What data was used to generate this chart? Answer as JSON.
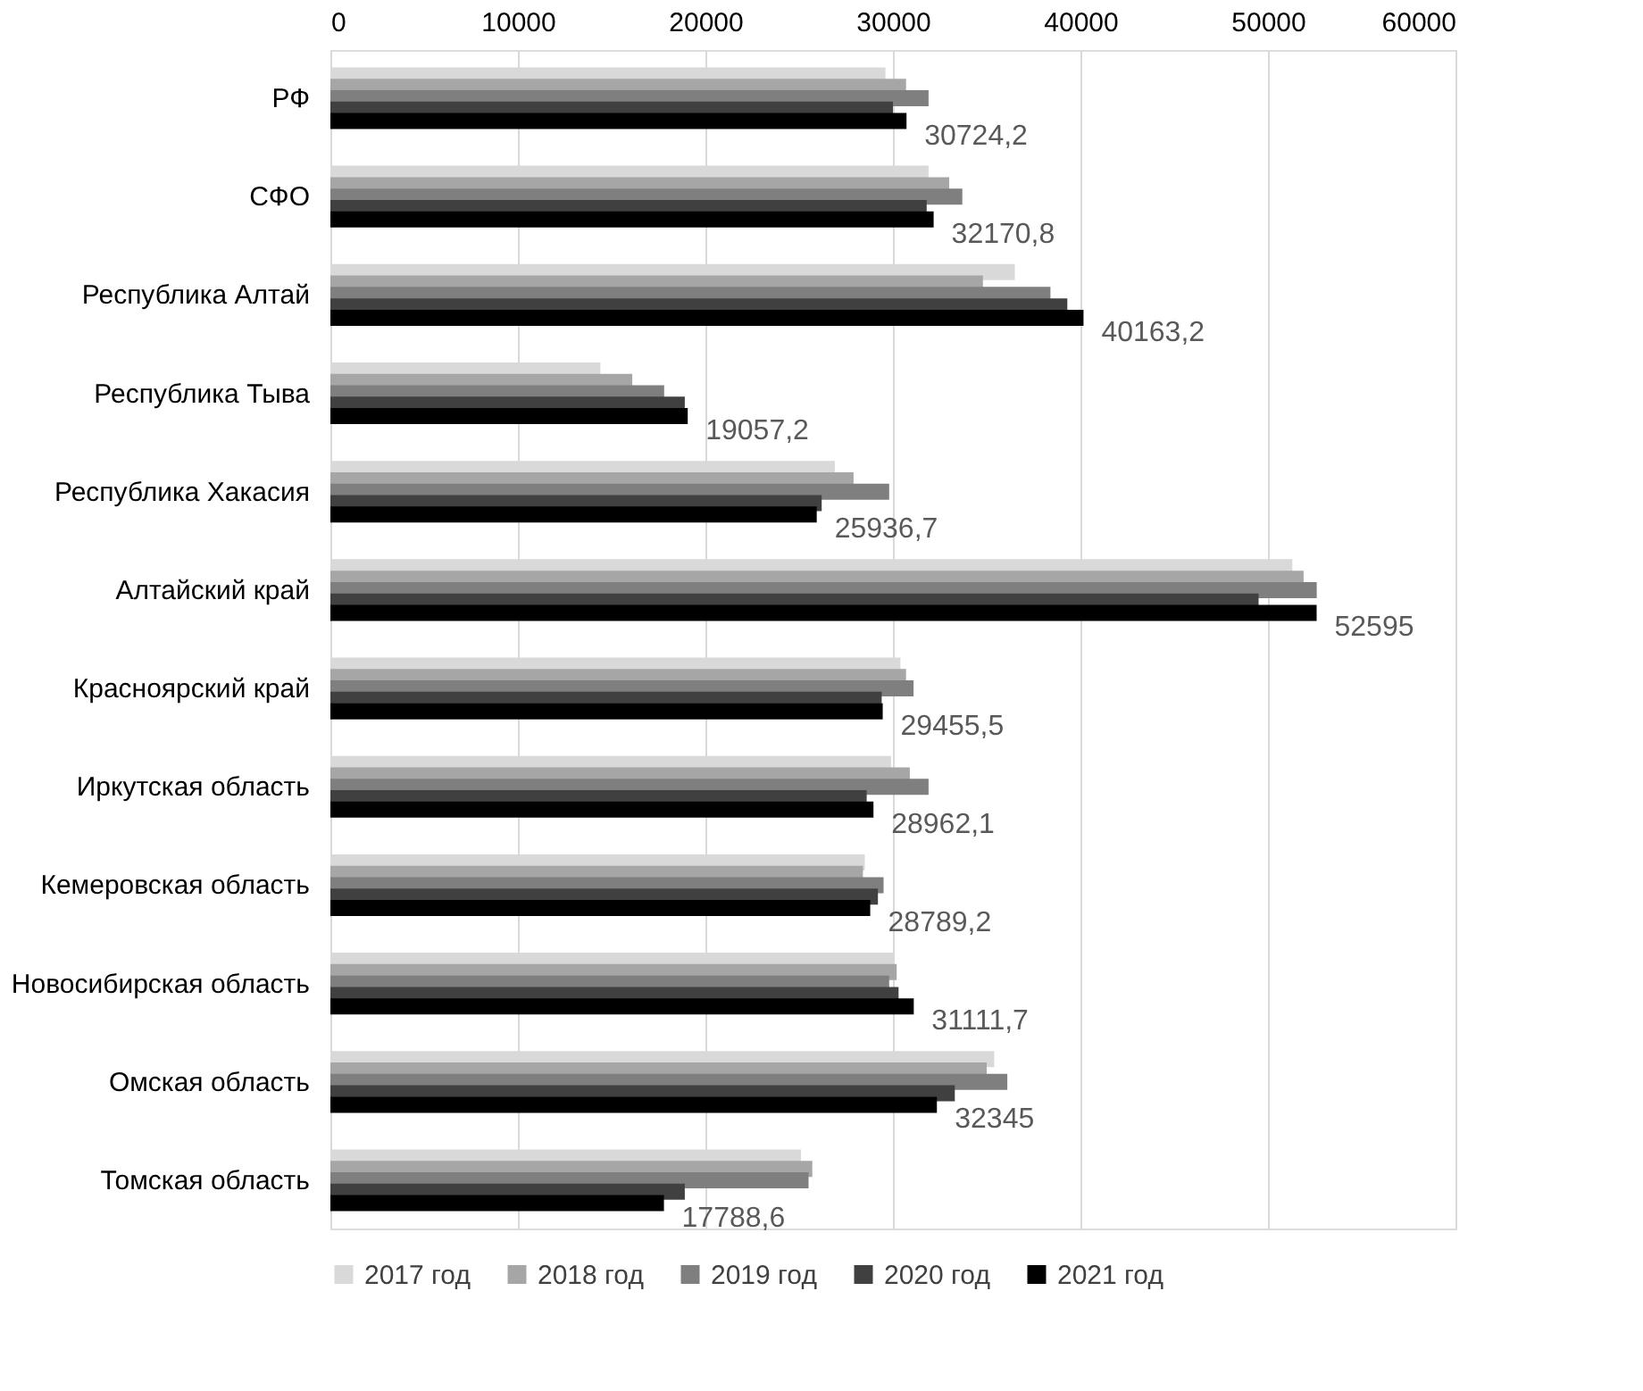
{
  "chart_data": {
    "type": "bar",
    "orientation": "horizontal",
    "categories": [
      "РФ",
      "СФО",
      "Республика Алтай",
      "Республика Тыва",
      "Республика Хакасия",
      "Алтайский край",
      "Красноярский край",
      "Иркутская область",
      "Кемеровская область",
      "Новосибирская область",
      "Омская область",
      "Томская область"
    ],
    "series": [
      {
        "name": "2017 год",
        "color": "#d9d9d9",
        "values": [
          29600,
          31900,
          36500,
          14400,
          26900,
          51300,
          30400,
          29900,
          28500,
          30000,
          35400,
          25100
        ]
      },
      {
        "name": "2018 год",
        "color": "#a6a6a6",
        "values": [
          30700,
          33000,
          34800,
          16100,
          27900,
          51900,
          30700,
          30900,
          28400,
          30200,
          35000,
          25700
        ]
      },
      {
        "name": "2019 год",
        "color": "#7f7f7f",
        "values": [
          31900,
          33700,
          38400,
          17800,
          29800,
          52600,
          31100,
          31900,
          29500,
          29800,
          36100,
          25500
        ]
      },
      {
        "name": "2020 год",
        "color": "#404040",
        "values": [
          30000,
          31800,
          39300,
          18900,
          26200,
          49500,
          29400,
          28600,
          29200,
          30300,
          33300,
          18900
        ]
      },
      {
        "name": "2021 год",
        "color": "#000000",
        "values": [
          30724.2,
          32170.8,
          40163.2,
          19057.2,
          25936.7,
          52595,
          29455.5,
          28962.1,
          28789.2,
          31111.7,
          32345,
          17788.6
        ],
        "value_labels": [
          "30724,2",
          "32170,8",
          "40163,2",
          "19057,2",
          "25936,7",
          "52595",
          "29455,5",
          "28962,1",
          "28789,2",
          "31111,7",
          "32345",
          "17788,6"
        ]
      }
    ],
    "xlim": [
      0,
      60000
    ],
    "xticks": [
      0,
      10000,
      20000,
      30000,
      40000,
      50000,
      60000
    ],
    "grid": "x",
    "legend": "bottom"
  }
}
